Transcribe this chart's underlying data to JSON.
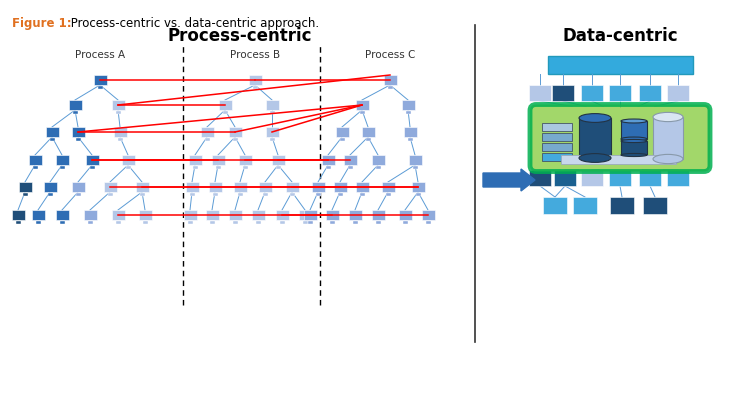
{
  "title_bold": "Figure 1:",
  "title_rest": " Process-centric vs. data-centric approach.",
  "title_color_bold": "#E07020",
  "title_color_rest": "#000000",
  "pc_title": "Process-centric",
  "dc_title": "Data-centric",
  "process_labels": [
    "Process A",
    "Process B",
    "Process C"
  ],
  "bg_color": "#FFFFFF",
  "node_dark_blue": "#1F4E79",
  "node_mid_blue": "#2E6DB4",
  "node_light_blue": "#8FAADC",
  "node_very_light": "#B4C7E7",
  "cyan_blue": "#33AADD",
  "green_border": "#00B050",
  "green_fill": "#92D050",
  "red_line": "#FF0000",
  "connector_blue": "#5B9BD5",
  "arrow_blue": "#2E6DB4",
  "divider_color": "#555555"
}
